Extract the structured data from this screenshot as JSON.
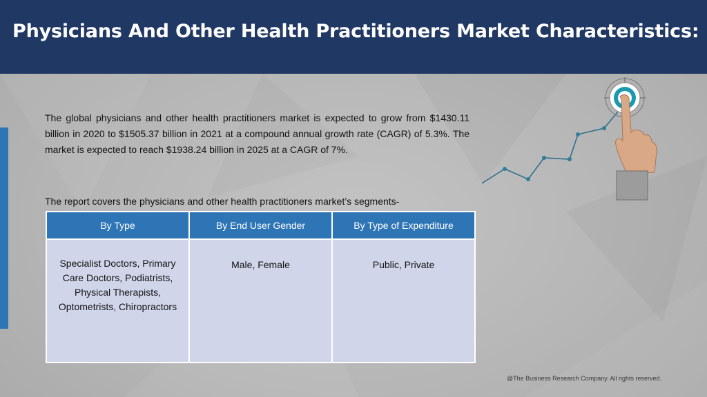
{
  "header": {
    "title": "Physicians And Other Health Practitioners Market Characteristics:"
  },
  "body": {
    "intro": "The global physicians and other health practitioners market is expected to grow from $1430.11 billion in 2020 to $1505.37 billion in 2021 at a compound annual growth rate (CAGR) of 5.3%. The market is expected to reach $1938.24 billion in 2025 at a CAGR of 7%.",
    "segments_lead": "The report covers the physicians and other health practitioners market’s segments-"
  },
  "segments_table": {
    "headers": [
      "By Type",
      "By End User Gender",
      "By Type of Expenditure"
    ],
    "cells": [
      "Specialist Doctors, Primary Care Doctors, Podiatrists, Physical Therapists, Optometrists, Chiropractors",
      "Male, Female",
      "Public, Private"
    ]
  },
  "footer": {
    "copyright": "@The Business Research Company. All rights reserved."
  },
  "colors": {
    "header_bg": "#203864",
    "accent_blue": "#2e75b6",
    "cell_bg": "#d0d5ea",
    "target_teal": "#1a9ab0"
  },
  "icons": {
    "graphic": "hand-pointing-target-growth-line"
  }
}
